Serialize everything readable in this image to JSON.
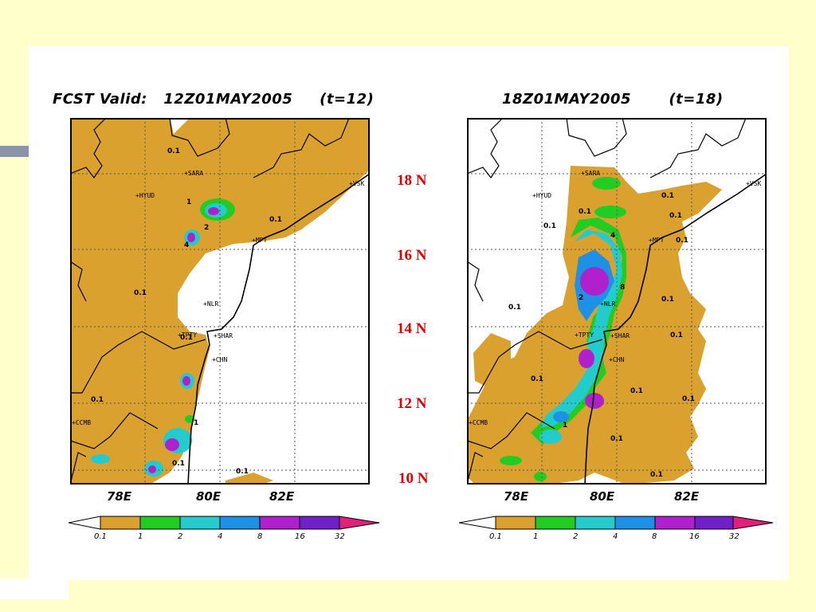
{
  "panels": [
    {
      "title": "FCST Valid:   12Z01MAY2005     (t=12)",
      "x_ticks": [
        "78E",
        "80E",
        "82E"
      ]
    },
    {
      "title": "18Z01MAY2005       (t=18)",
      "x_ticks": [
        "78E",
        "80E",
        "82E"
      ]
    }
  ],
  "lat_labels": [
    "18 N",
    "16 N",
    "14 N",
    "12 N",
    "10 N"
  ],
  "stations": [
    "+HYUD",
    "+SARA",
    "+MPT",
    "+NLR",
    "+TPTY",
    "+SHAR",
    "+CHN",
    "+CCMB",
    "+VSK"
  ],
  "contour_labels": [
    "0.1",
    "1",
    "2",
    "4",
    "8"
  ],
  "colorbar": {
    "levels": [
      "0.1",
      "1",
      "2",
      "4",
      "8",
      "16",
      "32"
    ],
    "colors": [
      "#ffffff",
      "#dba12e",
      "#22cc22",
      "#22cccc",
      "#1e90e6",
      "#b020cc",
      "#7020c8",
      "#e0207a"
    ]
  },
  "colors": {
    "background": "#ffffcc",
    "lat_label": "#e00000",
    "rain_light": "#dba12e"
  }
}
